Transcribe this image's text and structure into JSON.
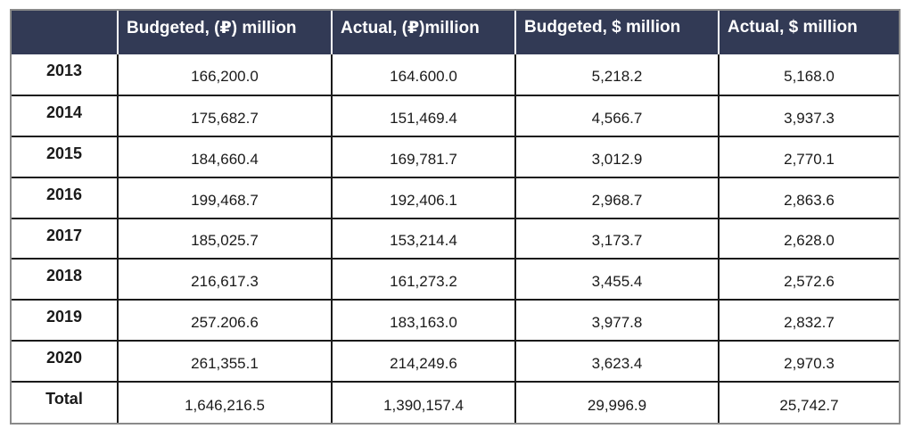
{
  "table": {
    "headers": [
      "",
      "Budgeted, (₽) million",
      "Actual, (₽)million",
      "Budgeted, $ million",
      "Actual, $ million"
    ],
    "rows": [
      {
        "year": "2013",
        "budgeted_rub": "166,200.0",
        "actual_rub": "164.600.0",
        "budgeted_usd": "5,218.2",
        "actual_usd": "5,168.0"
      },
      {
        "year": "2014",
        "budgeted_rub": "175,682.7",
        "actual_rub": "151,469.4",
        "budgeted_usd": "4,566.7",
        "actual_usd": "3,937.3"
      },
      {
        "year": "2015",
        "budgeted_rub": "184,660.4",
        "actual_rub": "169,781.7",
        "budgeted_usd": "3,012.9",
        "actual_usd": "2,770.1"
      },
      {
        "year": "2016",
        "budgeted_rub": "199,468.7",
        "actual_rub": "192,406.1",
        "budgeted_usd": "2,968.7",
        "actual_usd": "2,863.6"
      },
      {
        "year": "2017",
        "budgeted_rub": "185,025.7",
        "actual_rub": "153,214.4",
        "budgeted_usd": "3,173.7",
        "actual_usd": "2,628.0"
      },
      {
        "year": "2018",
        "budgeted_rub": "216,617.3",
        "actual_rub": "161,273.2",
        "budgeted_usd": "3,455.4",
        "actual_usd": "2,572.6"
      },
      {
        "year": "2019",
        "budgeted_rub": "257.206.6",
        "actual_rub": "183,163.0",
        "budgeted_usd": "3,977.8",
        "actual_usd": "2,832.7"
      },
      {
        "year": "2020",
        "budgeted_rub": "261,355.1",
        "actual_rub": "214,249.6",
        "budgeted_usd": "3,623.4",
        "actual_usd": "2,970.3"
      },
      {
        "year": "Total",
        "budgeted_rub": "1,646,216.5",
        "actual_rub": "1,390,157.4",
        "budgeted_usd": "29,996.9",
        "actual_usd": "25,742.7"
      }
    ]
  },
  "colors": {
    "header_bg": "#323a55",
    "header_text": "#ffffff",
    "grid_line": "#1a1a1a",
    "outer_border": "#8a8a8a"
  }
}
